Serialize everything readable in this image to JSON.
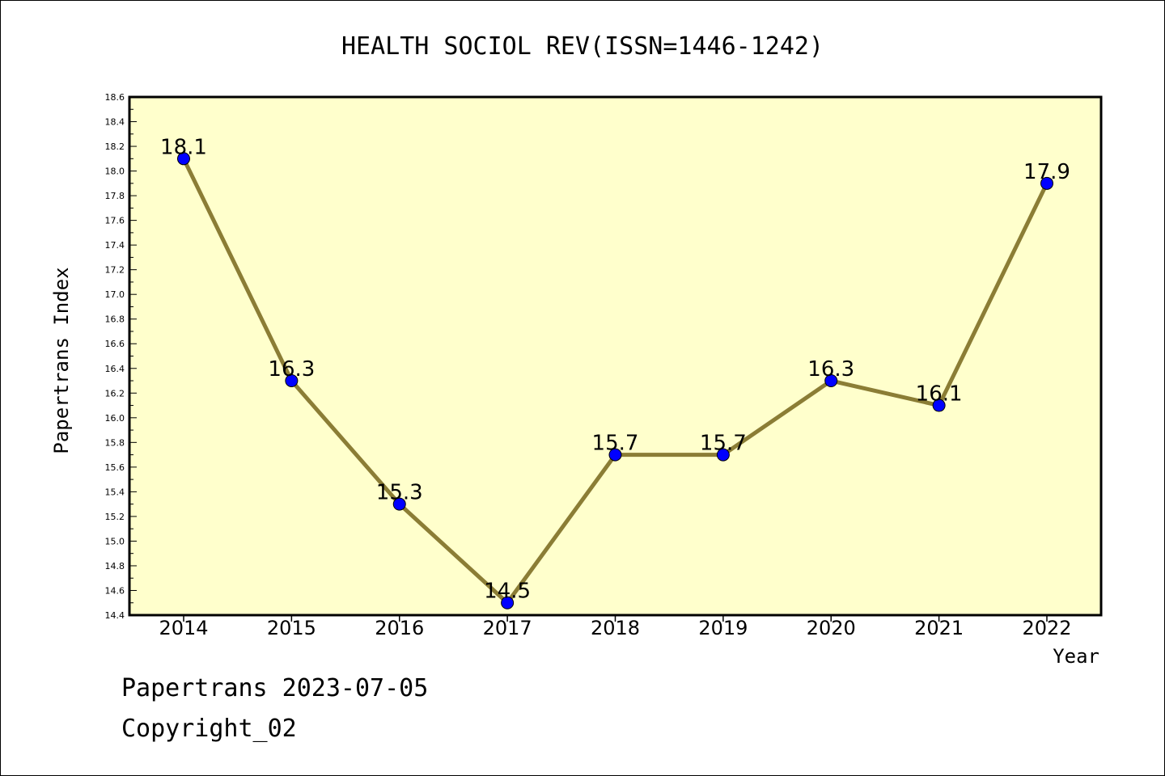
{
  "chart_data": {
    "type": "line",
    "title": "HEALTH SOCIOL REV(ISSN=1446-1242)",
    "xlabel": "Year",
    "ylabel": "Papertrans Index",
    "categories": [
      "2014",
      "2015",
      "2016",
      "2017",
      "2018",
      "2019",
      "2020",
      "2021",
      "2022"
    ],
    "values": [
      18.1,
      16.3,
      15.3,
      14.5,
      15.7,
      15.7,
      16.3,
      16.1,
      17.9
    ],
    "data_labels": [
      "18.1",
      "16.3",
      "15.3",
      "14.5",
      "15.7",
      "15.7",
      "16.3",
      "16.1",
      "17.9"
    ],
    "ylim": [
      14.4,
      18.6
    ],
    "yticks": [
      "14.4",
      "14.6",
      "14.8",
      "15.0",
      "15.2",
      "15.4",
      "15.6",
      "15.8",
      "16.0",
      "16.2",
      "16.4",
      "16.6",
      "16.8",
      "17.0",
      "17.2",
      "17.4",
      "17.6",
      "17.8",
      "18.0",
      "18.2",
      "18.4",
      "18.6"
    ],
    "grid": false,
    "colors": {
      "plot_background": "#ffffcc",
      "line": "#8b7d35",
      "marker": "#0000ff"
    }
  },
  "footer": {
    "date_line": "Papertrans 2023-07-05",
    "copyright": "Copyright_02"
  }
}
